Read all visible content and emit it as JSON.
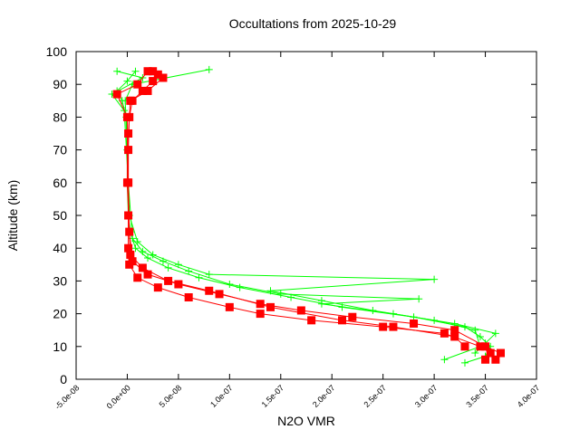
{
  "chart_data": {
    "type": "line",
    "title": "Occultations from 2025-10-29",
    "xlabel": "N2O VMR",
    "ylabel": "Altitude (km)",
    "xlim": [
      -5e-08,
      4e-07
    ],
    "ylim": [
      0,
      100
    ],
    "grid": false,
    "x_ticks": [
      "-5.0e-08",
      "0.0e+00",
      "5.0e-08",
      "1.0e-07",
      "1.5e-07",
      "2.0e-07",
      "2.5e-07",
      "3.0e-07",
      "3.5e-07",
      "4.0e-07"
    ],
    "x_tick_values": [
      -5e-08,
      0,
      5e-08,
      1e-07,
      1.5e-07,
      2e-07,
      2.5e-07,
      3e-07,
      3.5e-07,
      4e-07
    ],
    "y_ticks": [
      "0",
      "10",
      "20",
      "30",
      "40",
      "50",
      "60",
      "70",
      "80",
      "90",
      "100"
    ],
    "y_tick_values": [
      0,
      10,
      20,
      30,
      40,
      50,
      60,
      70,
      80,
      90,
      100
    ],
    "series": [
      {
        "color": "#00ff00",
        "marker": "plus",
        "profiles": [
          {
            "alt": [
              5,
              7,
              10,
              13,
              16,
              19,
              22,
              25,
              28,
              31,
              34,
              37,
              40,
              45,
              50,
              60,
              70,
              80,
              85,
              88,
              91,
              94
            ],
            "vmr": [
              3.3e-07,
              3.5e-07,
              3.55e-07,
              3.45e-07,
              3.3e-07,
              2.8e-07,
              2.1e-07,
              1.6e-07,
              1.1e-07,
              7e-08,
              4e-08,
              2e-08,
              8e-09,
              3e-09,
              1e-09,
              0,
              0,
              -1e-09,
              -5e-09,
              -1e-08,
              0,
              8e-09
            ]
          },
          {
            "alt": [
              6,
              10,
              15,
              18,
              21,
              24,
              27,
              30.5,
              32,
              35,
              38,
              42,
              50,
              70,
              85,
              90,
              94.5
            ],
            "vmr": [
              3.1e-07,
              3.45e-07,
              3.4e-07,
              3e-07,
              2.4e-07,
              1.9e-07,
              1.4e-07,
              3e-07,
              8e-08,
              5e-08,
              2.5e-08,
              1e-08,
              2e-09,
              0,
              -2e-09,
              5e-09,
              8e-08
            ]
          },
          {
            "alt": [
              8,
              11,
              14,
              17,
              20,
              23,
              24.5,
              26,
              29,
              33,
              36,
              39,
              43,
              60,
              82,
              87,
              92,
              94
            ],
            "vmr": [
              3.4e-07,
              3.5e-07,
              3.6e-07,
              3.2e-07,
              2.6e-07,
              1.9e-07,
              2.85e-07,
              1.5e-07,
              1e-07,
              6e-08,
              3.5e-08,
              1.5e-08,
              5e-09,
              1e-09,
              -3e-09,
              -1.5e-08,
              1.5e-08,
              -1e-08
            ]
          }
        ]
      },
      {
        "color": "#ff0000",
        "marker": "square",
        "profiles": [
          {
            "alt": [
              6,
              8,
              10,
              14,
              16,
              18,
              20,
              22,
              25,
              28,
              31,
              35,
              40,
              50,
              60,
              70,
              80,
              85,
              88,
              91,
              93
            ],
            "vmr": [
              3.5e-07,
              3.55e-07,
              3.45e-07,
              3.1e-07,
              2.5e-07,
              1.8e-07,
              1.3e-07,
              1e-07,
              6e-08,
              3e-08,
              1e-08,
              2e-09,
              1e-09,
              1e-09,
              1e-09,
              1e-09,
              2e-09,
              5e-09,
              1.5e-08,
              2.5e-08,
              3e-08
            ]
          },
          {
            "alt": [
              6,
              8,
              10,
              15,
              17,
              19,
              21,
              23,
              26,
              29,
              32,
              36,
              45,
              60,
              75,
              85,
              88,
              92,
              94
            ],
            "vmr": [
              3.6e-07,
              3.65e-07,
              3.5e-07,
              3.2e-07,
              2.8e-07,
              2.2e-07,
              1.7e-07,
              1.3e-07,
              9e-08,
              5e-08,
              2e-08,
              5e-09,
              2e-09,
              1e-09,
              1e-09,
              3e-09,
              2e-08,
              3.5e-08,
              2.5e-08
            ]
          },
          {
            "alt": [
              10,
              13,
              16,
              18,
              22,
              27,
              30,
              34,
              38,
              60,
              80,
              87,
              90,
              94
            ],
            "vmr": [
              3.3e-07,
              3.2e-07,
              2.6e-07,
              2.1e-07,
              1.4e-07,
              8e-08,
              4e-08,
              1.5e-08,
              3e-09,
              0,
              0,
              -1e-08,
              1e-08,
              2e-08
            ]
          }
        ]
      }
    ]
  }
}
